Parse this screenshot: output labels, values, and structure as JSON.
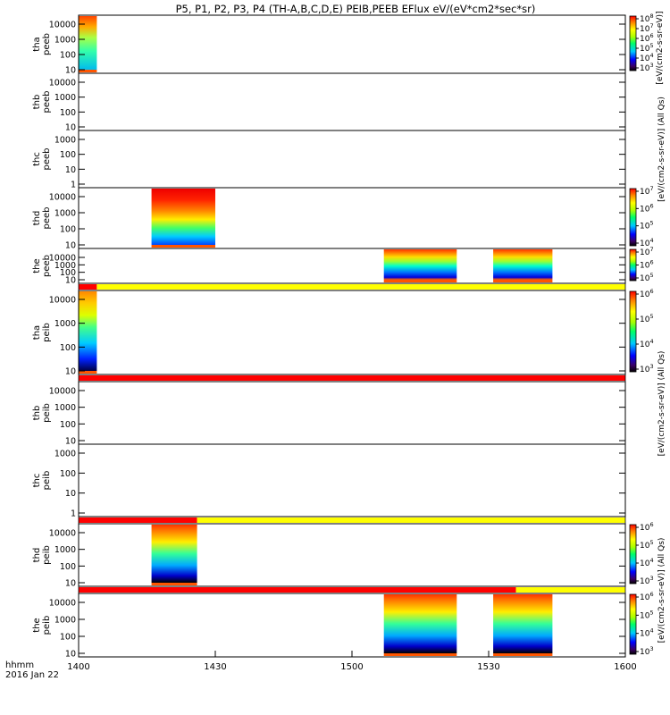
{
  "chart_data": {
    "type": "heatmap",
    "title": "P5, P1, P2, P3, P4 (TH-A,B,C,D,E) PEIB,PEEB EFlux eV/(eV*cm2*sec*sr)",
    "x_ticks": [
      "1400",
      "1430",
      "1500",
      "1530",
      "1600"
    ],
    "x_range_minutes": [
      0,
      120
    ],
    "x_footer": [
      "hhmm",
      "2016 Jan 22"
    ],
    "panels": [
      {
        "id": "tha-peeb",
        "label": [
          "tha",
          "peeb"
        ],
        "yscale": "log",
        "yticks": [
          "10000",
          "1000",
          "100",
          "10"
        ],
        "colorbar": {
          "ticks": [
            "10^8",
            "10^7",
            "10^6",
            "10^5",
            "10^4",
            "10^3"
          ],
          "label": "[eV/(cm2-s-sr-eV)]",
          "shared": false
        },
        "data_intervals": [
          {
            "start_min": 0,
            "end_min": 4
          }
        ]
      },
      {
        "id": "thb-peeb",
        "label": [
          "thb",
          "peeb"
        ],
        "yscale": "log",
        "yticks": [
          "10000",
          "1000",
          "100",
          "10"
        ],
        "colorbar": null,
        "data_intervals": []
      },
      {
        "id": "thc-peeb",
        "label": [
          "thc",
          "peeb"
        ],
        "yscale": "log",
        "yticks": [
          "1000",
          "100",
          "10",
          "1"
        ],
        "colorbar": null,
        "data_intervals": []
      },
      {
        "id": "thd-peeb",
        "label": [
          "thd",
          "peeb"
        ],
        "yscale": "log",
        "yticks": [
          "10000",
          "1000",
          "100",
          "10"
        ],
        "colorbar": {
          "ticks": [
            "10^7",
            "10^6",
            "10^5",
            "10^4"
          ],
          "label": "",
          "shared": false
        },
        "data_intervals": [
          {
            "start_min": 16,
            "end_min": 30
          }
        ]
      },
      {
        "id": "the-peeb",
        "label": [
          "the",
          "peeb"
        ],
        "yscale": "log",
        "yticks": [
          "10000",
          "1000",
          "100",
          "10"
        ],
        "colorbar": {
          "ticks": [
            "10^7",
            "10^6",
            "10^5"
          ],
          "label": "",
          "shared": false
        },
        "data_intervals": [
          {
            "start_min": 67,
            "end_min": 83
          },
          {
            "start_min": 91,
            "end_min": 104
          }
        ]
      },
      {
        "id": "tha-peib",
        "label": [
          "tha",
          "peib"
        ],
        "yscale": "log",
        "yticks": [
          "10000",
          "1000",
          "100",
          "10"
        ],
        "colorbar": {
          "ticks": [
            "10^6",
            "10^5",
            "10^4",
            "10^3"
          ],
          "label": "",
          "shared": false
        },
        "data_intervals": [
          {
            "start_min": 0,
            "end_min": 4
          }
        ]
      },
      {
        "id": "thb-peib",
        "label": [
          "thb",
          "peib"
        ],
        "yscale": "log",
        "yticks": [
          "10000",
          "1000",
          "100",
          "10"
        ],
        "colorbar": null,
        "data_intervals": []
      },
      {
        "id": "thc-peib",
        "label": [
          "thc",
          "peib"
        ],
        "yscale": "log",
        "yticks": [
          "1000",
          "100",
          "10",
          "1"
        ],
        "colorbar": null,
        "data_intervals": []
      },
      {
        "id": "thd-peib",
        "label": [
          "thd",
          "peib"
        ],
        "yscale": "log",
        "yticks": [
          "10000",
          "1000",
          "100",
          "10"
        ],
        "colorbar": {
          "ticks": [
            "10^6",
            "10^5",
            "10^4",
            "10^3"
          ],
          "label": "",
          "shared": false
        },
        "data_intervals": [
          {
            "start_min": 16,
            "end_min": 26
          }
        ]
      },
      {
        "id": "the-peib",
        "label": [
          "the",
          "peib"
        ],
        "yscale": "log",
        "yticks": [
          "10000",
          "1000",
          "100",
          "10"
        ],
        "colorbar": {
          "ticks": [
            "10^6",
            "10^5",
            "10^4",
            "10^3"
          ],
          "label": "",
          "shared": false
        },
        "data_intervals": [
          {
            "start_min": 67,
            "end_min": 83
          },
          {
            "start_min": 91,
            "end_min": 104
          }
        ]
      }
    ],
    "mode_bars": [
      {
        "after_panel": 4,
        "segments": [
          {
            "start_min": 0,
            "end_min": 4,
            "color": "#ff0000"
          },
          {
            "start_min": 4,
            "end_min": 120,
            "color": "#ffff00"
          }
        ]
      },
      {
        "after_panel": 5,
        "segments": [
          {
            "start_min": 0,
            "end_min": 120,
            "color": "#ff0000"
          }
        ]
      },
      {
        "after_panel": 7,
        "segments": [
          {
            "start_min": 0,
            "end_min": 26,
            "color": "#ff0000"
          },
          {
            "start_min": 26,
            "end_min": 120,
            "color": "#ffff00"
          }
        ]
      },
      {
        "after_panel": 8,
        "segments": [
          {
            "start_min": 0,
            "end_min": 96,
            "color": "#ff0000"
          },
          {
            "start_min": 96,
            "end_min": 120,
            "color": "#ffff00"
          }
        ]
      }
    ],
    "side_labels": [
      {
        "text": "[eV/(cm2-s-sr-eV)] (All Qs)",
        "span": "upper"
      },
      {
        "text": "[eV/(cm2-s-sr-eV)] (All Qs)",
        "span": "middle"
      },
      {
        "text": "[eV/(cm2-s-sr-eV)] (All Qs)",
        "span": "lower"
      }
    ]
  }
}
